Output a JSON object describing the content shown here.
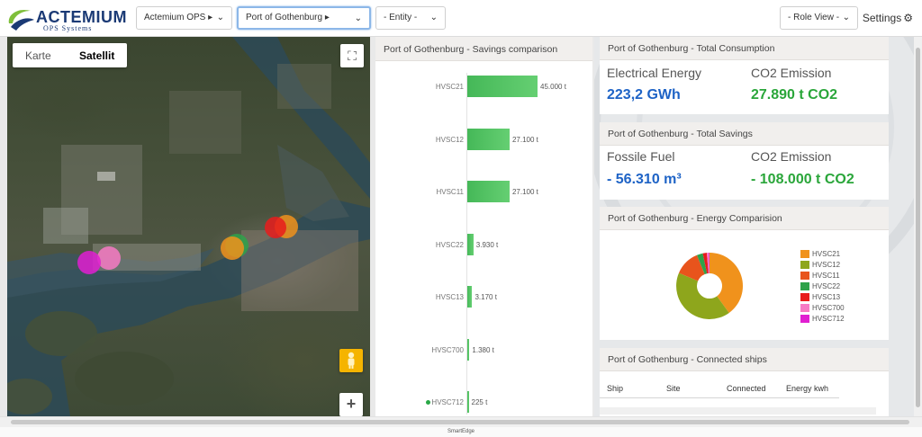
{
  "brand": {
    "name": "ACTEMIUM",
    "subtitle": "OPS Systems"
  },
  "header": {
    "selectors": [
      {
        "label": "Actemium OPS ▸",
        "active": false
      },
      {
        "label": "Port of Gothenburg ▸",
        "active": true
      },
      {
        "label": "- Entity -",
        "active": false
      },
      {
        "label": "- Role View -",
        "active": false
      }
    ],
    "settings_label": "Settings",
    "settings_icon": "gear-icon"
  },
  "map": {
    "tabs": [
      "Karte",
      "Satellit"
    ],
    "selected_tab": "Satellit",
    "fullscreen_icon": "fullscreen-icon",
    "pegman_icon": "pegman-icon",
    "zoom_in_label": "+"
  },
  "savings": {
    "title": "Port of Gothenburg - Savings comparison",
    "bars": [
      {
        "label": "HVSC21",
        "value": 45000,
        "value_label": "45.000 t"
      },
      {
        "label": "HVSC12",
        "value": 27100,
        "value_label": "27.100 t"
      },
      {
        "label": "HVSC11",
        "value": 27100,
        "value_label": "27.100 t"
      },
      {
        "label": "HVSC22",
        "value": 3930,
        "value_label": "3.930 t"
      },
      {
        "label": "HVSC13",
        "value": 3170,
        "value_label": "3.170 t"
      },
      {
        "label": "HVSC700",
        "value": 1380,
        "value_label": "1.380 t"
      },
      {
        "label": "HVSC712",
        "value": 225,
        "value_label": "225 t"
      }
    ],
    "bar_color": "#4cbf5c"
  },
  "consumption": {
    "title": "Port of Gothenburg - Total Consumption",
    "energy_label": "Electrical Energy",
    "energy_value": "223,2 GWh",
    "co2_label": "CO2 Emission",
    "co2_value": "27.890 t CO2"
  },
  "total_savings": {
    "title": "Port of Gothenburg - Total Savings",
    "fuel_label": "Fossile Fuel",
    "fuel_value": "- 56.310 m³",
    "co2_label": "CO2 Emission",
    "co2_value": "- 108.000 t CO2"
  },
  "energy_comparison": {
    "title": "Port of Gothenburg - Energy Comparision",
    "legend": [
      {
        "label": "HVSC21",
        "color": "#f0921c"
      },
      {
        "label": "HVSC12",
        "color": "#8ea61c"
      },
      {
        "label": "HVSC11",
        "color": "#e8541c"
      },
      {
        "label": "HVSC22",
        "color": "#2fa24a"
      },
      {
        "label": "HVSC13",
        "color": "#e81c1c"
      },
      {
        "label": "HVSC700",
        "color": "#f77ac4"
      },
      {
        "label": "HVSC712",
        "color": "#e11fd1"
      }
    ]
  },
  "connected_ships": {
    "title": "Port of Gothenburg - Connected ships",
    "columns": [
      "Ship",
      "Site",
      "Connected",
      "Energy kwh"
    ]
  },
  "colors": {
    "kpi_blue": "#1e63c6",
    "kpi_green": "#2aa63a"
  },
  "footer": {
    "text": "SmartEdge"
  }
}
